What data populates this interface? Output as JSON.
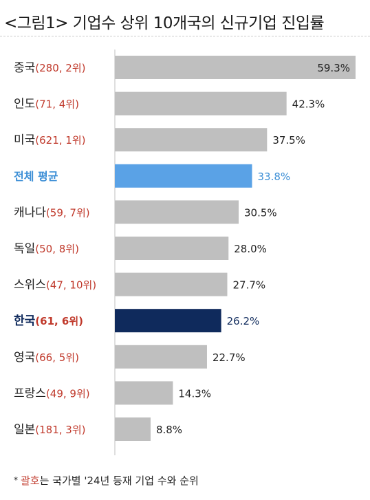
{
  "title": "<그림1> 기업수 상위 10개국의 신규기업 진입률",
  "footnote": {
    "marker": "*",
    "highlight": "괄호",
    "text": "는 국가별 '24년 등재 기업 수와 순위"
  },
  "colors": {
    "bar_default": "#bfbfbf",
    "bar_average": "#5aa2e6",
    "bar_korea": "#0f2a5c",
    "paren_text": "#c0392b",
    "average_text": "#3d8fd6"
  },
  "chart_data": {
    "type": "bar",
    "orientation": "horizontal",
    "title": "<그림1> 기업수 상위 10개국의 신규기업 진입률",
    "xlim": [
      0,
      59.3
    ],
    "grid": false,
    "legend": "none",
    "categories": [
      {
        "name": "중국",
        "paren": "(280, 2위)",
        "value": 59.3,
        "label": "59.3%",
        "kind": "default"
      },
      {
        "name": "인도",
        "paren": "(71, 4위)",
        "value": 42.3,
        "label": "42.3%",
        "kind": "default"
      },
      {
        "name": "미국",
        "paren": "(621, 1위)",
        "value": 37.5,
        "label": "37.5%",
        "kind": "default"
      },
      {
        "name": "전체 평균",
        "paren": "",
        "value": 33.8,
        "label": "33.8%",
        "kind": "average"
      },
      {
        "name": "캐나다",
        "paren": "(59, 7위)",
        "value": 30.5,
        "label": "30.5%",
        "kind": "default"
      },
      {
        "name": "독일",
        "paren": "(50, 8위)",
        "value": 28.0,
        "label": "28.0%",
        "kind": "default"
      },
      {
        "name": "스위스",
        "paren": "(47, 10위)",
        "value": 27.7,
        "label": "27.7%",
        "kind": "default"
      },
      {
        "name": "한국",
        "paren": "(61, 6위)",
        "value": 26.2,
        "label": "26.2%",
        "kind": "korea"
      },
      {
        "name": "영국",
        "paren": "(66, 5위)",
        "value": 22.7,
        "label": "22.7%",
        "kind": "default"
      },
      {
        "name": "프랑스",
        "paren": "(49, 9위)",
        "value": 14.3,
        "label": "14.3%",
        "kind": "default"
      },
      {
        "name": "일본",
        "paren": "(181, 3위)",
        "value": 8.8,
        "label": "8.8%",
        "kind": "default"
      }
    ]
  }
}
